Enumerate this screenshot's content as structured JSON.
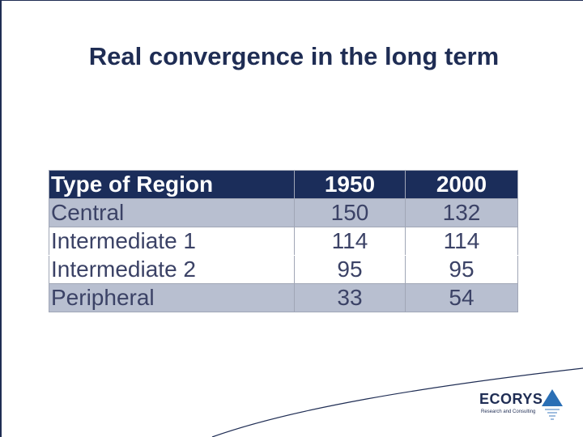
{
  "slide": {
    "title": "Real convergence in the long term"
  },
  "table": {
    "headers": [
      "Type of Region",
      "1950",
      "2000"
    ],
    "rows": [
      [
        "Central",
        "150",
        "132"
      ],
      [
        "Intermediate 1",
        "114",
        "114"
      ],
      [
        "Intermediate 2",
        "95",
        "95"
      ],
      [
        "Peripheral",
        "33",
        "54"
      ]
    ]
  },
  "logo": {
    "name": "ECORYS",
    "tagline": "Research and Consulting"
  },
  "colors": {
    "brand_navy": "#1f2d54",
    "header_bg": "#1b2d5a",
    "row_shade": "#b8bfd0",
    "logo_blue": "#2a6fb5"
  }
}
